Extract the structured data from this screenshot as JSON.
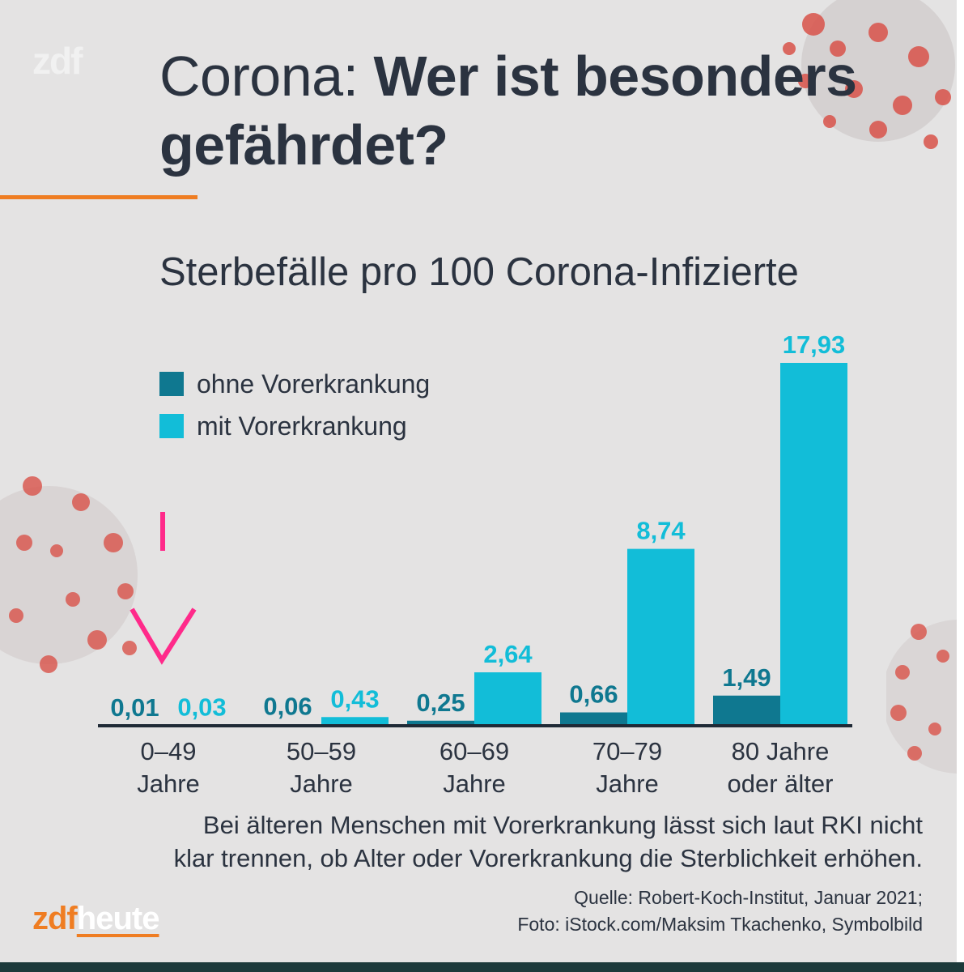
{
  "brand": {
    "top_logo": "zdf",
    "bottom_logo_part1": "zdf",
    "bottom_logo_part2": "heute"
  },
  "header": {
    "title_regular": "Corona: ",
    "title_bold": "Wer ist besonders gefährdet?"
  },
  "colors": {
    "ohne": "#0f7890",
    "mit": "#12bdd8",
    "accent": "#ef7d22",
    "text": "#2b3340",
    "annotation": "#ff2a8a",
    "virus": "#d9534a"
  },
  "chart_data": {
    "type": "bar",
    "title": "Sterbefälle pro 100 Corona-Infizierte",
    "categories": [
      "0–49 Jahre",
      "50–59 Jahre",
      "60–69 Jahre",
      "70–79 Jahre",
      "80 Jahre oder älter"
    ],
    "category_lines": [
      [
        "0–49",
        "Jahre"
      ],
      [
        "50–59",
        "Jahre"
      ],
      [
        "60–69",
        "Jahre"
      ],
      [
        "70–79",
        "Jahre"
      ],
      [
        "80 Jahre",
        "oder älter"
      ]
    ],
    "series": [
      {
        "name": "ohne Vorerkrankung",
        "values": [
          0.01,
          0.06,
          0.25,
          0.66,
          1.49
        ],
        "labels": [
          "0,01",
          "0,06",
          "0,25",
          "0,66",
          "1,49"
        ]
      },
      {
        "name": "mit Vorerkrankung",
        "values": [
          0.03,
          0.43,
          2.64,
          8.74,
          17.93
        ],
        "labels": [
          "0,03",
          "0,43",
          "2,64",
          "8,74",
          "17,93"
        ]
      }
    ],
    "ylim": [
      0,
      17.93
    ],
    "legend": "top-left"
  },
  "caption": {
    "line1": "Bei älteren Menschen mit Vorerkrankung lässt sich laut RKI nicht",
    "line2": "klar trennen, ob Alter oder Vorerkrankung die Sterblichkeit erhöhen."
  },
  "source": {
    "line1": "Quelle: Robert-Koch-Institut, Januar 2021;",
    "line2": "Foto: iStock.com/Maksim Tkachenko, Symbolbild"
  },
  "annotation": {
    "marks": [
      "vertical-tick",
      "v-checkmark"
    ]
  }
}
